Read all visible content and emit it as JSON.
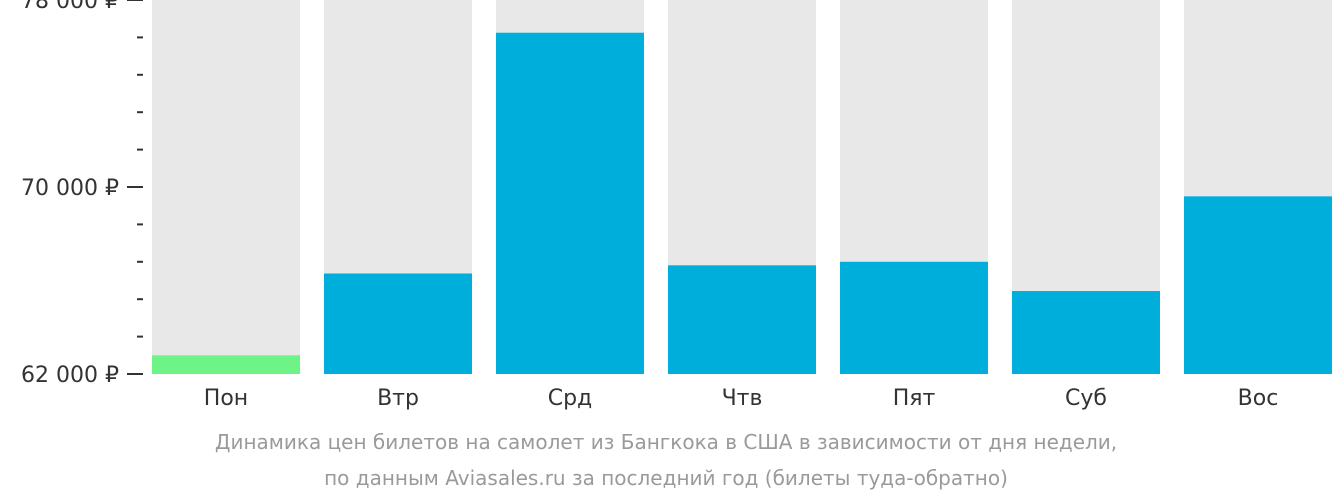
{
  "chart_data": {
    "type": "bar",
    "categories": [
      "Пон",
      "Втр",
      "Срд",
      "Чтв",
      "Пят",
      "Суб",
      "Вос"
    ],
    "values": [
      62800,
      66300,
      76600,
      66650,
      66800,
      65550,
      69600
    ],
    "ylim": [
      62000,
      78000
    ],
    "yticks": [
      62000,
      70000,
      78000
    ],
    "ytick_labels": [
      "62 000 ₽",
      "70 000 ₽",
      "78 000 ₽"
    ],
    "minor_tick_step": 1600,
    "highlight_index": 0,
    "grid": false,
    "legend": "none"
  },
  "colors": {
    "bar": "#00aedb",
    "bar_highlight": "#6ef387",
    "bar_background": "#e8e8e8",
    "axis": "#333333",
    "caption": "#9a9a9a"
  },
  "caption": {
    "line1": "Динамика цен билетов на самолет из Бангкока в США в зависимости от дня недели,",
    "line2": "по данным Aviasales.ru за последний год (билеты туда-обратно)"
  }
}
